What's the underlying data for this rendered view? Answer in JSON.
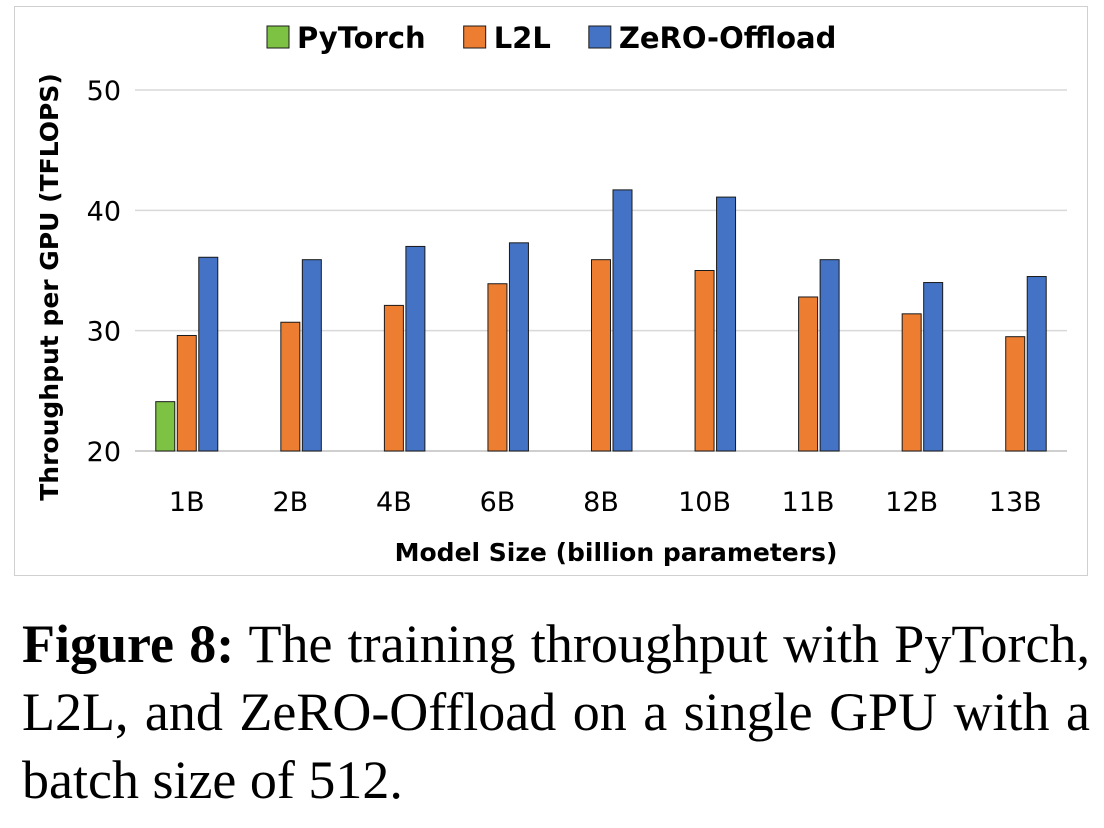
{
  "chart_data": {
    "type": "bar",
    "categories": [
      "1B",
      "2B",
      "4B",
      "6B",
      "8B",
      "10B",
      "11B",
      "12B",
      "13B"
    ],
    "series": [
      {
        "name": "PyTorch",
        "color": "#7dc242",
        "values": [
          24.1,
          null,
          null,
          null,
          null,
          null,
          null,
          null,
          null
        ]
      },
      {
        "name": "L2L",
        "color": "#ed7d31",
        "values": [
          29.6,
          30.7,
          32.1,
          33.9,
          35.9,
          35.0,
          32.8,
          31.4,
          29.5
        ]
      },
      {
        "name": "ZeRO-Offload",
        "color": "#4472c4",
        "values": [
          36.1,
          35.9,
          37.0,
          37.3,
          41.7,
          41.1,
          35.9,
          34.0,
          34.5
        ]
      }
    ],
    "xlabel": "Model Size (billion parameters)",
    "ylabel": "Throughput per GPU (TFLOPS)",
    "ylim": [
      20,
      50
    ],
    "yticks": [
      20,
      30,
      40,
      50
    ],
    "grid": true,
    "legend": "top"
  },
  "caption": {
    "label": "Figure 8:",
    "text": "The training throughput with PyTorch, L2L, and ZeRO-Offload on a single GPU with a batch size of 512."
  }
}
